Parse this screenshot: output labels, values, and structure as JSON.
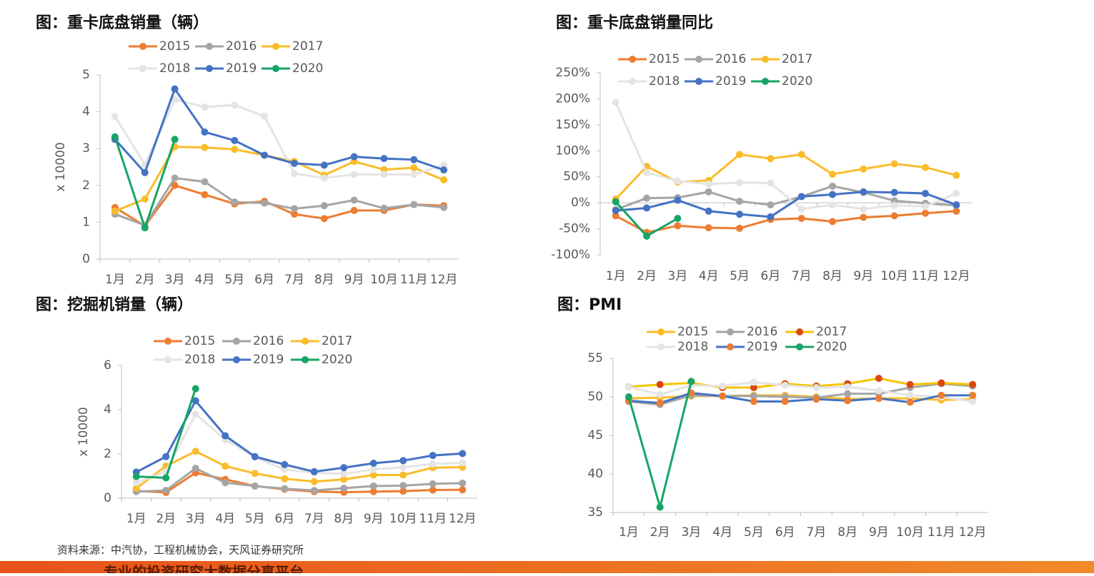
{
  "chart_data": [
    {
      "type": "line",
      "title": "图：重卡底盘销量（辆）",
      "ylabel": "x 10000",
      "categories": [
        "1月",
        "2月",
        "3月",
        "4月",
        "5月",
        "6月",
        "7月",
        "8月",
        "9月",
        "10月",
        "11月",
        "12月"
      ],
      "ylim": [
        0,
        5
      ],
      "yticks": [
        0,
        1,
        2,
        3,
        4,
        5
      ],
      "series": [
        {
          "name": "2015",
          "color": "#ed7d31",
          "values": [
            1.4,
            0.9,
            2.0,
            1.75,
            1.5,
            1.57,
            1.22,
            1.1,
            1.32,
            1.32,
            1.48,
            1.45
          ]
        },
        {
          "name": "2016",
          "color": "#a5a5a5",
          "values": [
            1.22,
            0.92,
            2.2,
            2.1,
            1.55,
            1.52,
            1.37,
            1.45,
            1.6,
            1.38,
            1.48,
            1.4
          ]
        },
        {
          "name": "2017",
          "color": "#fbbc2a",
          "values": [
            1.3,
            1.63,
            3.05,
            3.03,
            2.98,
            2.82,
            2.65,
            2.28,
            2.65,
            2.43,
            2.48,
            2.15
          ]
        },
        {
          "name": "2018",
          "color": "#e4e4e4",
          "values": [
            3.87,
            2.57,
            4.33,
            4.13,
            4.18,
            3.88,
            2.32,
            2.2,
            2.3,
            2.3,
            2.3,
            2.55
          ]
        },
        {
          "name": "2019",
          "color": "#4472c4",
          "values": [
            3.25,
            2.35,
            4.62,
            3.45,
            3.22,
            2.82,
            2.6,
            2.55,
            2.78,
            2.73,
            2.7,
            2.42
          ]
        },
        {
          "name": "2020",
          "color": "#15a565",
          "values": [
            3.32,
            0.85,
            3.25,
            null,
            null,
            null,
            null,
            null,
            null,
            null,
            null,
            null
          ]
        }
      ]
    },
    {
      "type": "line",
      "title": "图：重卡底盘销量同比",
      "categories": [
        "1月",
        "2月",
        "3月",
        "4月",
        "5月",
        "6月",
        "7月",
        "8月",
        "9月",
        "10月",
        "11月",
        "12月"
      ],
      "ylim": [
        -100,
        250
      ],
      "yticks": [
        {
          "value": -100,
          "label": "-100%"
        },
        {
          "value": -50,
          "label": "-50%"
        },
        {
          "value": 0,
          "label": "0%"
        },
        {
          "value": 50,
          "label": "50%"
        },
        {
          "value": 100,
          "label": "100%"
        },
        {
          "value": 150,
          "label": "150%"
        },
        {
          "value": 200,
          "label": "200%"
        },
        {
          "value": 250,
          "label": "250%"
        }
      ],
      "series": [
        {
          "name": "2015",
          "color": "#ed7d31",
          "values": [
            -25,
            -57,
            -44,
            -48,
            -49,
            -32,
            -30,
            -36,
            -28,
            -25,
            -20,
            -16
          ]
        },
        {
          "name": "2016",
          "color": "#a5a5a5",
          "values": [
            -13,
            9,
            10,
            21,
            3,
            -4,
            12,
            32,
            20,
            4,
            -1,
            -5
          ]
        },
        {
          "name": "2017",
          "color": "#fbbc2a",
          "values": [
            7,
            70,
            40,
            43,
            93,
            85,
            93,
            55,
            65,
            75,
            68,
            53
          ]
        },
        {
          "name": "2018",
          "color": "#e4e4e4",
          "values": [
            193,
            58,
            42,
            36,
            39,
            38,
            -12,
            -4,
            -12,
            -5,
            -7,
            18
          ]
        },
        {
          "name": "2019",
          "color": "#4472c4",
          "values": [
            -15,
            -10,
            5,
            -16,
            -22,
            -27,
            12,
            16,
            21,
            20,
            18,
            -4
          ]
        },
        {
          "name": "2020",
          "color": "#15a565",
          "values": [
            2,
            -64,
            -30,
            null,
            null,
            null,
            null,
            null,
            null,
            null,
            null,
            null
          ]
        }
      ]
    },
    {
      "type": "line",
      "title": "图：挖掘机销量（辆）",
      "ylabel": "x 10000",
      "categories": [
        "1月",
        "2月",
        "3月",
        "4月",
        "5月",
        "6月",
        "7月",
        "8月",
        "9月",
        "10月",
        "11月",
        "12月"
      ],
      "ylim": [
        0,
        6
      ],
      "yticks": [
        0,
        2,
        4,
        6
      ],
      "series": [
        {
          "name": "2015",
          "color": "#ed7d31",
          "values": [
            0.33,
            0.26,
            1.15,
            0.85,
            0.55,
            0.4,
            0.3,
            0.27,
            0.3,
            0.32,
            0.37,
            0.38
          ]
        },
        {
          "name": "2016",
          "color": "#a5a5a5",
          "values": [
            0.3,
            0.35,
            1.35,
            0.7,
            0.55,
            0.43,
            0.35,
            0.45,
            0.55,
            0.57,
            0.65,
            0.68
          ]
        },
        {
          "name": "2017",
          "color": "#fbbc2a",
          "values": [
            0.45,
            1.45,
            2.12,
            1.45,
            1.12,
            0.88,
            0.75,
            0.85,
            1.05,
            1.05,
            1.38,
            1.4
          ]
        },
        {
          "name": "2018",
          "color": "#e4e4e4",
          "values": [
            0.7,
            1.2,
            3.8,
            2.65,
            1.85,
            1.3,
            1.15,
            1.1,
            1.3,
            1.4,
            1.55,
            1.6
          ]
        },
        {
          "name": "2019",
          "color": "#4472c4",
          "values": [
            1.18,
            1.88,
            4.4,
            2.82,
            1.88,
            1.52,
            1.2,
            1.38,
            1.58,
            1.7,
            1.93,
            2.02
          ]
        },
        {
          "name": "2020",
          "color": "#15a565",
          "values": [
            0.98,
            0.92,
            4.95,
            null,
            null,
            null,
            null,
            null,
            null,
            null,
            null,
            null
          ]
        }
      ]
    },
    {
      "type": "line",
      "title": "图：PMI",
      "categories": [
        "1月",
        "2月",
        "3月",
        "4月",
        "5月",
        "6月",
        "7月",
        "8月",
        "9月",
        "10月",
        "11月",
        "12月"
      ],
      "ylim": [
        35,
        55
      ],
      "yticks": [
        35,
        40,
        45,
        50,
        55
      ],
      "series": [
        {
          "name": "2015",
          "color": "#fbbc2a",
          "marker_color": "#fbbc2a",
          "values": [
            49.8,
            49.9,
            50.1,
            50.1,
            50.2,
            50.2,
            50.0,
            49.7,
            49.8,
            49.8,
            49.6,
            49.7
          ]
        },
        {
          "name": "2016",
          "color": "#a5a5a5",
          "marker_color": "#a5a5a5",
          "values": [
            49.4,
            49.0,
            50.2,
            50.1,
            50.1,
            50.0,
            49.9,
            50.4,
            50.4,
            51.2,
            51.7,
            51.4
          ]
        },
        {
          "name": "2017",
          "color": "#f5c400",
          "marker_color": "#d9480f",
          "values": [
            51.3,
            51.6,
            51.8,
            51.2,
            51.2,
            51.7,
            51.4,
            51.7,
            52.4,
            51.6,
            51.8,
            51.6
          ]
        },
        {
          "name": "2018",
          "color": "#e4e4e4",
          "marker_color": "#e4e4e4",
          "values": [
            51.3,
            50.3,
            51.5,
            51.4,
            51.9,
            51.5,
            51.2,
            51.3,
            50.8,
            50.2,
            50.0,
            49.4
          ]
        },
        {
          "name": "2019",
          "color": "#4472c4",
          "marker_color": "#ed7d31",
          "values": [
            49.5,
            49.2,
            50.5,
            50.1,
            49.4,
            49.4,
            49.7,
            49.5,
            49.8,
            49.3,
            50.2,
            50.2
          ]
        },
        {
          "name": "2020",
          "color": "#15a565",
          "marker_color": "#15a565",
          "values": [
            50.0,
            35.7,
            52.0,
            null,
            null,
            null,
            null,
            null,
            null,
            null,
            null,
            null
          ]
        }
      ]
    }
  ],
  "source": "资料来源：中汽协，工程机械协会，天风证券研究所",
  "banner": "专业的投资研究大数据分享平台"
}
